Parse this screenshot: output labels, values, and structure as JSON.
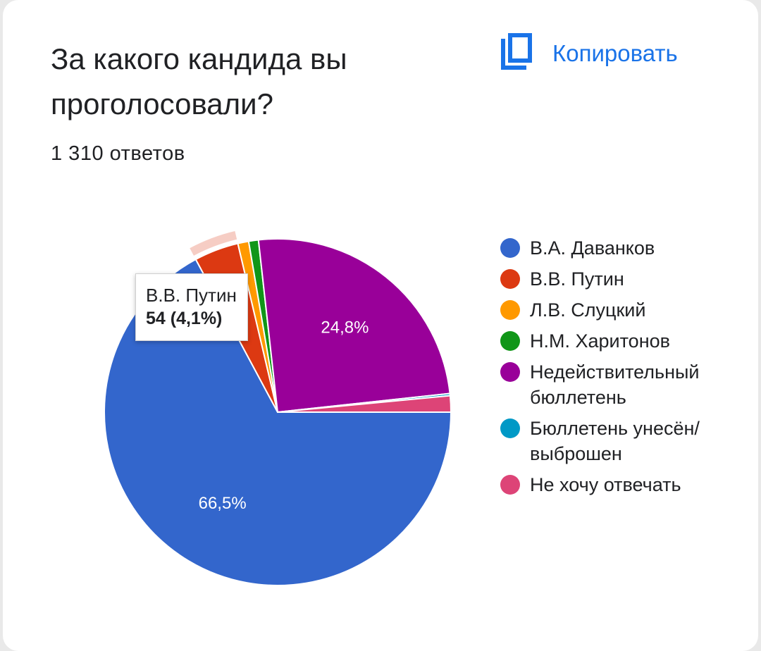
{
  "title": "За какого кандида вы проголосовали?",
  "responses": "1 310 ответов",
  "copy_label": "Копировать",
  "icon": "copy-icon",
  "tooltip": {
    "label": "В.В. Путин",
    "value": "54 (4,1%)"
  },
  "chart_data": {
    "type": "pie",
    "title": "За какого кандида вы проголосовали?",
    "subtitle": "1 310 ответов",
    "total": 1310,
    "legend_position": "right",
    "slices": [
      {
        "label": "В.А. Даванков",
        "percent": 66.5,
        "value_label": "66,5%",
        "color": "#3366cc"
      },
      {
        "label": "В.В. Путин",
        "percent": 4.1,
        "value": 54,
        "color": "#dc3912",
        "highlighted": true
      },
      {
        "label": "Л.В. Слуцкий",
        "percent": 1.0,
        "color": "#ff9900"
      },
      {
        "label": "Н.М. Харитонов",
        "percent": 0.9,
        "color": "#109618"
      },
      {
        "label": "Недействительный бюллетень",
        "percent": 24.8,
        "value_label": "24,8%",
        "color": "#990099"
      },
      {
        "label": "Бюллетень унесён/ выброшен",
        "percent": 0.2,
        "color": "#0099c6"
      },
      {
        "label": "Не хочу отвечать",
        "percent": 1.5,
        "color": "#dd4477"
      }
    ]
  }
}
